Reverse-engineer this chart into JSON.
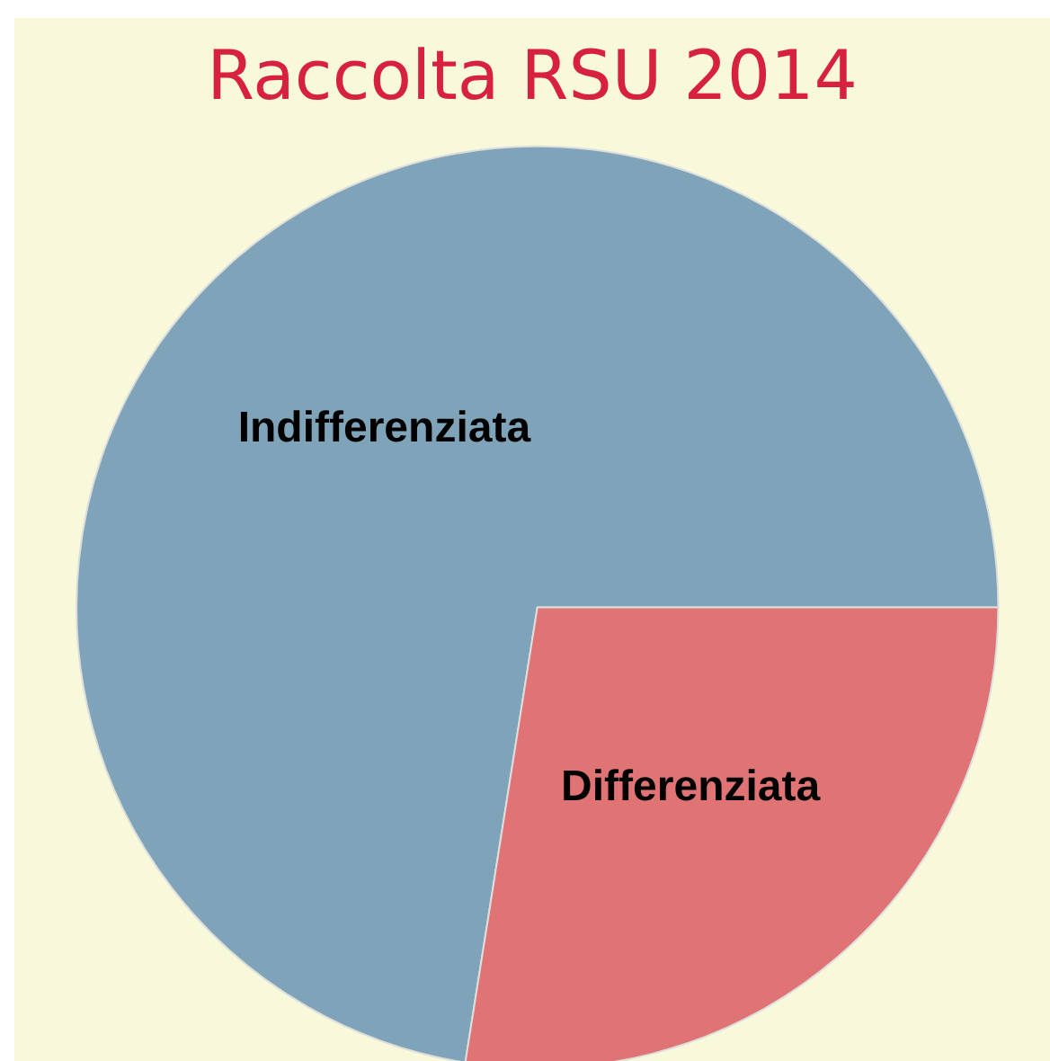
{
  "chart_data": {
    "type": "pie",
    "title": "Raccolta RSU 2014",
    "categories": [
      "Indifferenziata",
      "Differenziata"
    ],
    "values": [
      72.5,
      27.5
    ],
    "colors": [
      "#7fa3b8",
      "#e07474"
    ]
  }
}
